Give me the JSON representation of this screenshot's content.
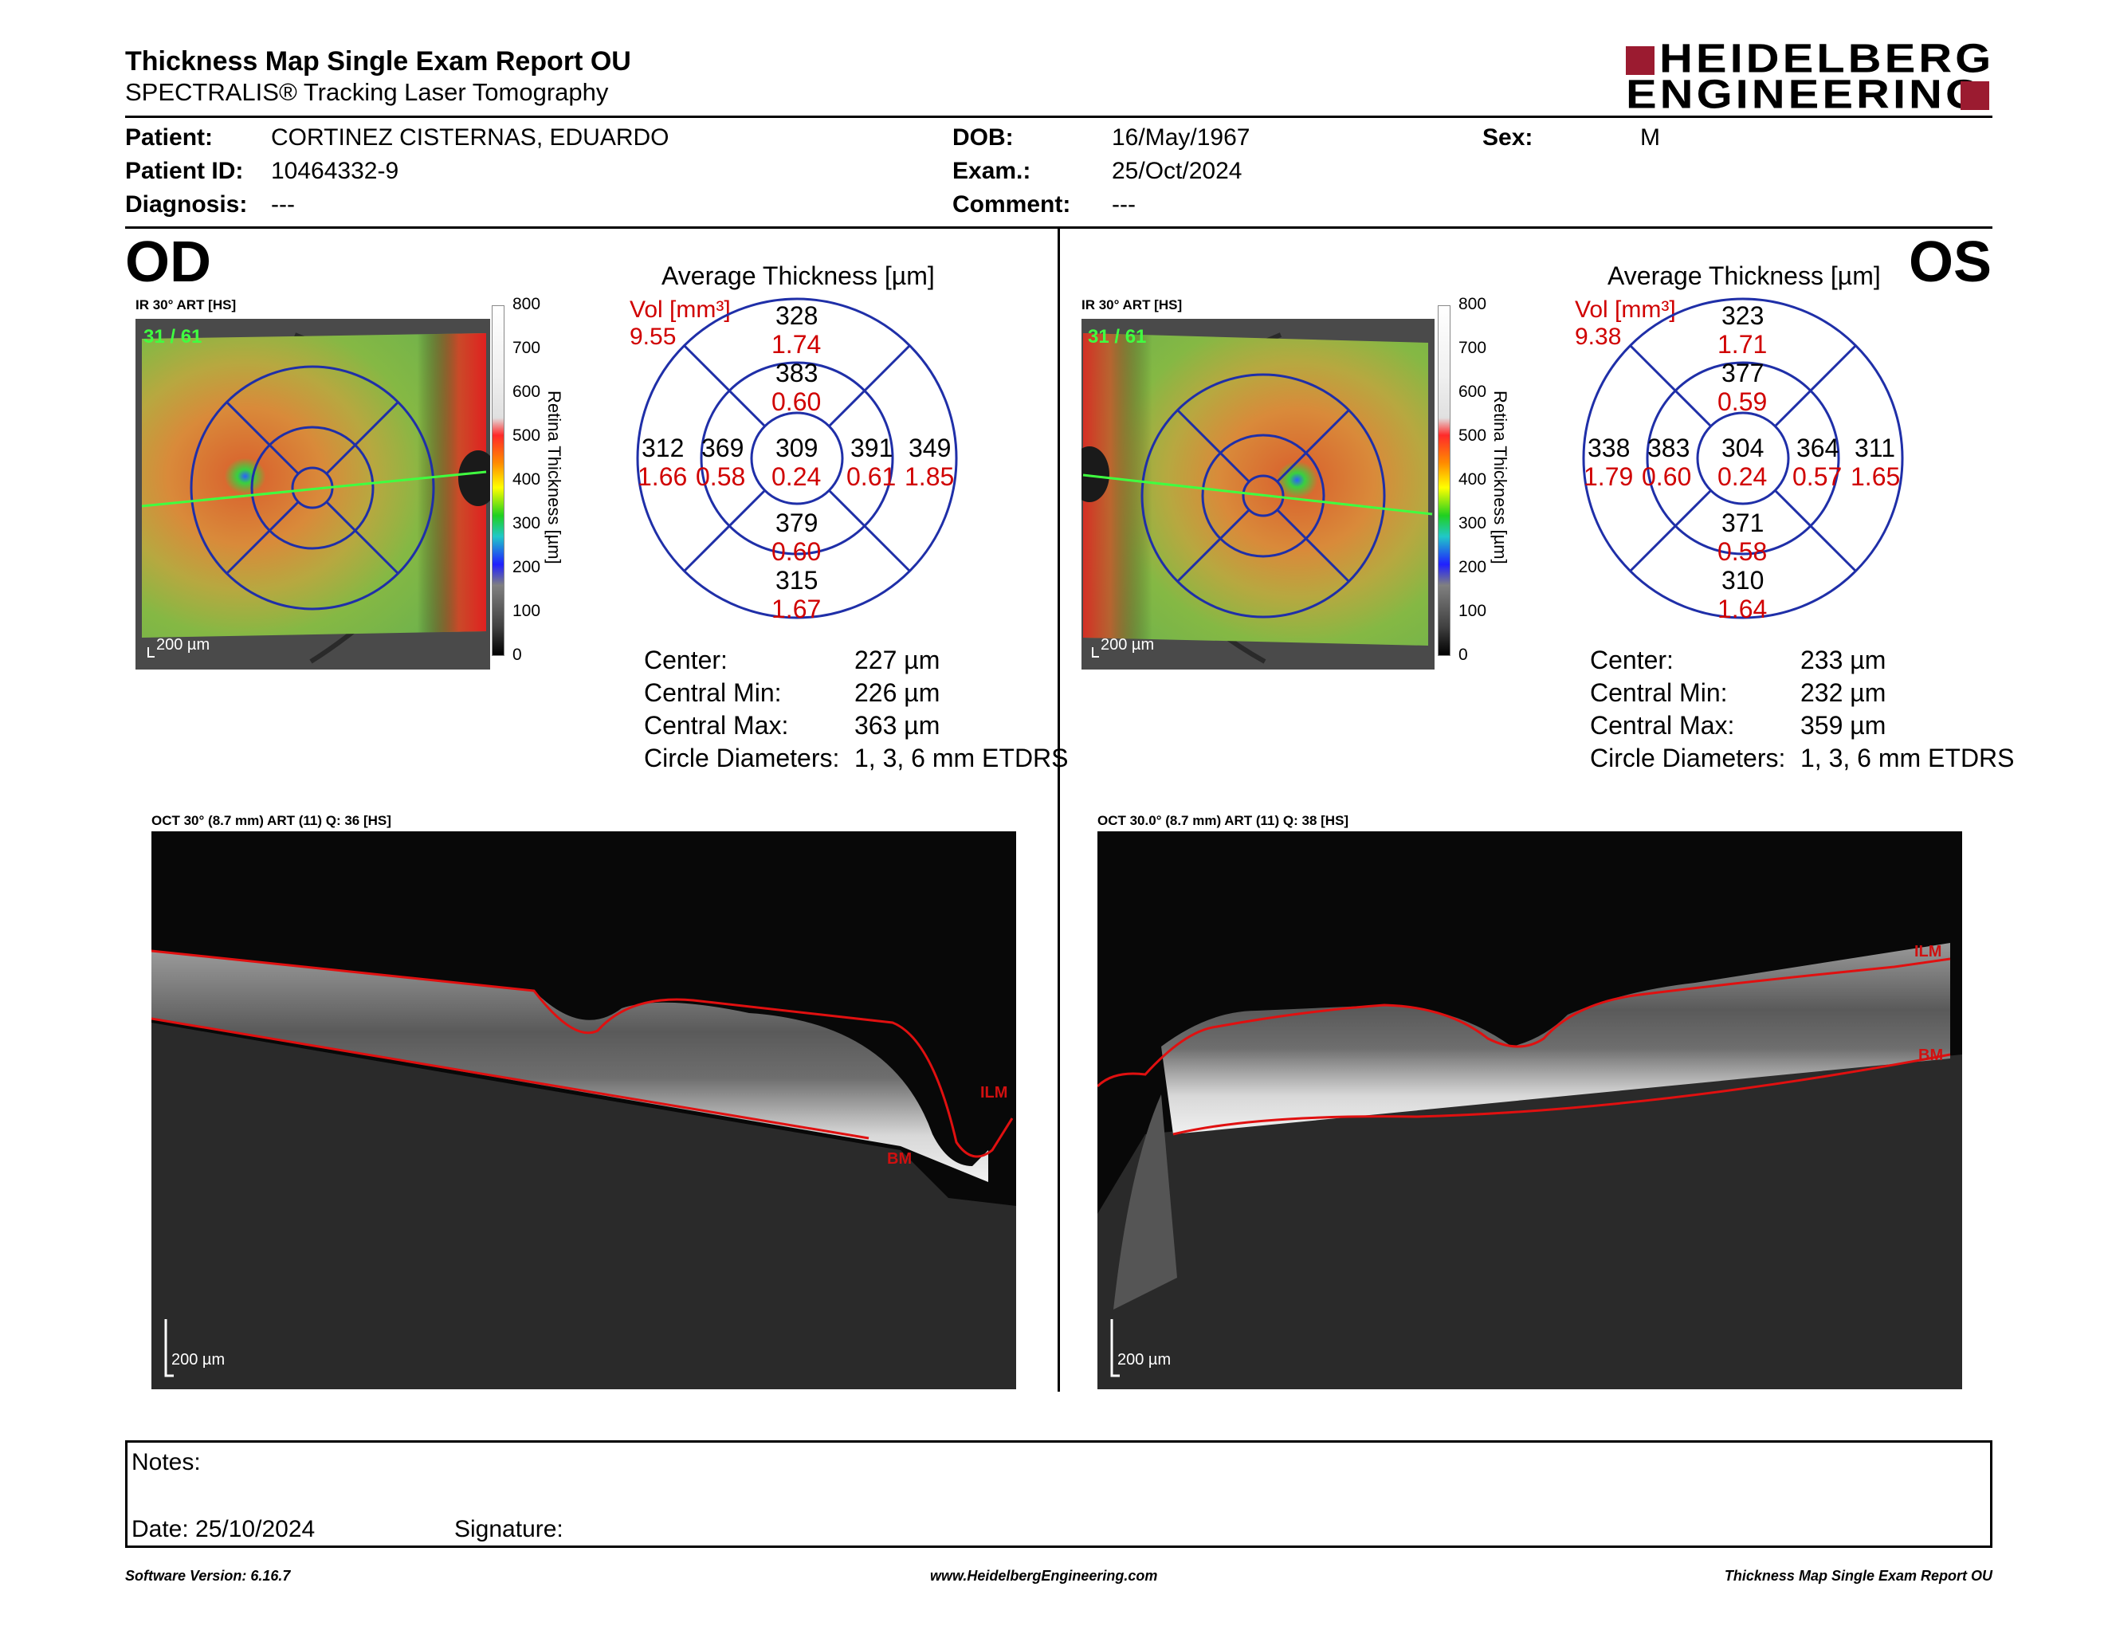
{
  "header": {
    "title": "Thickness Map Single Exam Report OU",
    "subtitle": "SPECTRALIS® Tracking Laser Tomography",
    "logo_line1": "HEIDELBERG",
    "logo_line2": "ENGINEERING"
  },
  "patient": {
    "patient_label": "Patient:",
    "patient_value": "CORTINEZ CISTERNAS, EDUARDO",
    "id_label": "Patient ID:",
    "id_value": "10464332-9",
    "diagnosis_label": "Diagnosis:",
    "diagnosis_value": "---",
    "dob_label": "DOB:",
    "dob_value": "16/May/1967",
    "exam_label": "Exam.:",
    "exam_value": "25/Oct/2024",
    "comment_label": "Comment:",
    "comment_value": "---",
    "sex_label": "Sex:",
    "sex_value": "M"
  },
  "od": {
    "eye": "OD",
    "ir_label": "IR 30° ART [HS]",
    "frame": "31 / 61",
    "scale": "200 µm",
    "avg_title": "Average Thickness [µm]",
    "vol_label": "Vol [mm³]",
    "vol_value": "9.55",
    "grid": {
      "center_t": "309",
      "center_v": "0.24",
      "inner_sup_t": "383",
      "inner_sup_v": "0.60",
      "inner_inf_t": "379",
      "inner_inf_v": "0.60",
      "inner_left_t": "369",
      "inner_left_v": "0.58",
      "inner_right_t": "391",
      "inner_right_v": "0.61",
      "outer_sup_t": "328",
      "outer_sup_v": "1.74",
      "outer_inf_t": "315",
      "outer_inf_v": "1.67",
      "outer_left_t": "312",
      "outer_left_v": "1.66",
      "outer_right_t": "349",
      "outer_right_v": "1.85"
    },
    "stats": {
      "center_label": "Center:",
      "center_value": "227 µm",
      "min_label": "Central Min:",
      "min_value": "226 µm",
      "max_label": "Central Max:",
      "max_value": "363 µm",
      "diam_label": "Circle Diameters:",
      "diam_value": "1, 3, 6 mm ETDRS"
    },
    "oct_label": "OCT 30° (8.7 mm) ART (11) Q: 36 [HS]",
    "oct_scale": "200 µm",
    "ilm": "ILM",
    "bm": "BM"
  },
  "os": {
    "eye": "OS",
    "ir_label": "IR 30° ART [HS]",
    "frame": "31 / 61",
    "scale": "200 µm",
    "avg_title": "Average Thickness [µm]",
    "vol_label": "Vol [mm³]",
    "vol_value": "9.38",
    "grid": {
      "center_t": "304",
      "center_v": "0.24",
      "inner_sup_t": "377",
      "inner_sup_v": "0.59",
      "inner_inf_t": "371",
      "inner_inf_v": "0.58",
      "inner_left_t": "383",
      "inner_left_v": "0.60",
      "inner_right_t": "364",
      "inner_right_v": "0.57",
      "outer_sup_t": "323",
      "outer_sup_v": "1.71",
      "outer_inf_t": "310",
      "outer_inf_v": "1.64",
      "outer_left_t": "338",
      "outer_left_v": "1.79",
      "outer_right_t": "311",
      "outer_right_v": "1.65"
    },
    "stats": {
      "center_label": "Center:",
      "center_value": "233 µm",
      "min_label": "Central Min:",
      "min_value": "232 µm",
      "max_label": "Central Max:",
      "max_value": "359 µm",
      "diam_label": "Circle Diameters:",
      "diam_value": "1, 3, 6 mm ETDRS"
    },
    "oct_label": "OCT 30.0° (8.7 mm) ART (11) Q: 38 [HS]",
    "oct_scale": "200 µm",
    "ilm": "ILM",
    "bm": "BM"
  },
  "colorbar": {
    "ticks": [
      "800",
      "700",
      "600",
      "500",
      "400",
      "300",
      "200",
      "100",
      "0"
    ],
    "label": "Retina Thickness [µm]"
  },
  "notes": {
    "notes_label": "Notes:",
    "date_label": "Date: 25/10/2024",
    "signature_label": "Signature:"
  },
  "footer": {
    "software": "Software Version: 6.16.7",
    "website": "www.HeidelbergEngineering.com",
    "report_name": "Thickness Map Single Exam Report OU"
  },
  "colors": {
    "logo_red": "#9b1b30",
    "grid_blue": "#1f2fa8",
    "value_red": "#d00000",
    "ilm_red": "#d01010"
  }
}
